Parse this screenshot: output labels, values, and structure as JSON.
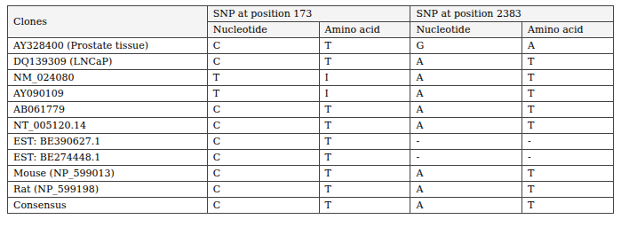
{
  "chart_data": {
    "type": "table",
    "color": "#444444",
    "columns": [
      {
        "name": "Clones"
      },
      {
        "name": "SNP at position 173",
        "columns": [
          "Nucleotide",
          "Amino acid"
        ]
      },
      {
        "name": "SNP at position 2383",
        "columns": [
          "Nucleotide",
          "Amino acid"
        ]
      }
    ],
    "rows": [
      [
        "AY328400 (Prostate tissue)",
        "C",
        "T",
        "G",
        "A"
      ],
      [
        "DQ139309 (LNCaP)",
        "C",
        "T",
        "A",
        "T"
      ],
      [
        "NM_024080",
        "T",
        "I",
        "A",
        "T"
      ],
      [
        "AY090109",
        "T",
        "I",
        "A",
        "T"
      ],
      [
        "AB061779",
        "C",
        "T",
        "A",
        "T"
      ],
      [
        "NT_005120.14",
        "C",
        "T",
        "A",
        "T"
      ],
      [
        "EST: BE390627.1",
        "C",
        "T",
        "-",
        "-"
      ],
      [
        "EST: BE274448.1",
        "C",
        "T",
        "-",
        "-"
      ],
      [
        "Mouse (NP_599013)",
        "C",
        "T",
        "A",
        "T"
      ],
      [
        "Rat (NP_599198)",
        "C",
        "T",
        "A",
        "T"
      ],
      [
        "Consensus",
        "C",
        "T",
        "A",
        "T"
      ]
    ]
  }
}
